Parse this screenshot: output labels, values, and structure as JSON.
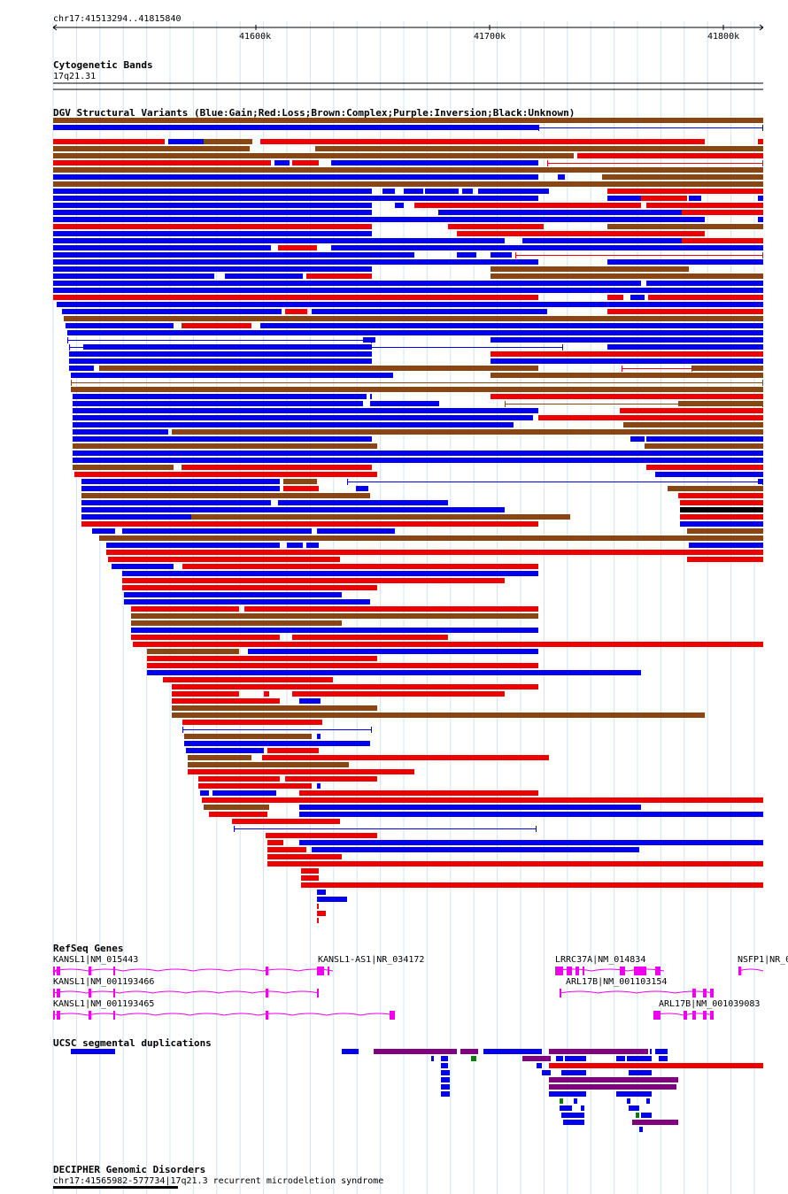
{
  "region": "chr17:41513294..41815840",
  "ruler": {
    "ticks": [
      {
        "label": "41600k",
        "pos": 41600000
      },
      {
        "label": "41700k",
        "pos": 41700000
      },
      {
        "label": "41800k",
        "pos": 41800000
      }
    ]
  },
  "tracks": {
    "cytoband": {
      "title": "Cytogenetic Bands",
      "band": "17q21.31"
    },
    "dgv": {
      "title": "DGV Structural Variants (Blue:Gain;Red:Loss;Brown:Complex;Purple:Inversion;Black:Unknown)",
      "colors": {
        "gain": "#0000ee",
        "loss": "#ee0000",
        "complex": "#8b4513",
        "inversion": "#800080",
        "unknown": "#000000"
      }
    },
    "refseq": {
      "title": "RefSeq Genes",
      "color": "#ee00ee",
      "genes": [
        {
          "label": "KANSL1|NM_015443"
        },
        {
          "label": "KANSL1-AS1|NR_034172"
        },
        {
          "label": "LRRC37A|NM_014834"
        },
        {
          "label": "NSFP1|NR_0"
        },
        {
          "label": "KANSL1|NM_001193466"
        },
        {
          "label": "ARL17B|NM_001103154"
        },
        {
          "label": "KANSL1|NM_001193465"
        },
        {
          "label": "ARL17B|NM_001039083"
        }
      ]
    },
    "segdup": {
      "title": "UCSC segmental duplications"
    },
    "decipher": {
      "title": "DECIPHER Genomic Disorders",
      "item": "chr17:41565982-577734|17q21.3 recurrent microdeletion syndrome"
    }
  }
}
